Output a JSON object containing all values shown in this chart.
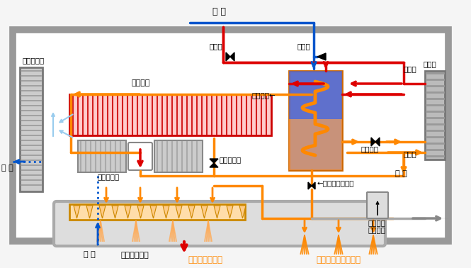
{
  "bg_color": "#f5f5f5",
  "red": "#dd0000",
  "orange": "#ff8800",
  "blue": "#0055cc",
  "gray": "#888888",
  "labels": {
    "kyusui": "給 水",
    "netsudoben": "熱動弁",
    "gyakushi_ben": "逆止弁",
    "danboyu": "暖房往",
    "danbomodori": "暖房戻",
    "nessgenki": "熱源機",
    "ekitsu_netsuko": "液液熱交←",
    "onpu_netsuko": "温風熱交",
    "kanetsu_fan": "換気ファン",
    "junkan_fan": "循環ファン",
    "micro_ben": "マイクロ弁",
    "splash_ben": "←スプラッシュ弁",
    "mizu_hirei_ben": "水比例弁",
    "haiki": "排 気",
    "kyuki": "給 気",
    "haisu": "排 水",
    "float_switch_1": "フロート",
    "float_switch_2": "スイッチ",
    "onpu_fukidashi": "温風吹き出し",
    "micro_mist": "マイクロミスト",
    "splash_mist": "スプラッシュミスト"
  }
}
